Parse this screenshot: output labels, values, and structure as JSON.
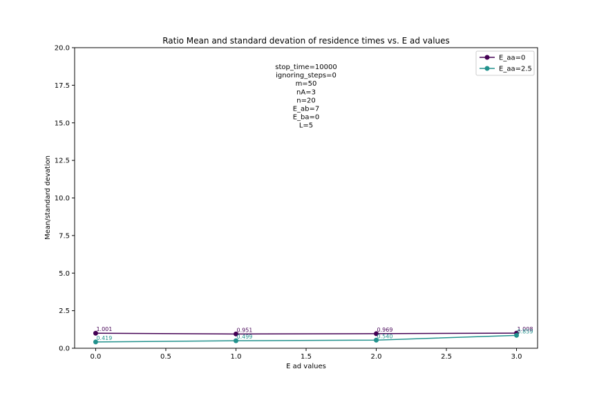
{
  "chart_data": {
    "type": "line",
    "title": "Ratio Mean and standard devation of residence times vs. E ad values",
    "xlabel": "E ad values",
    "ylabel": "Mean/standard devation",
    "xlim": [
      -0.15,
      3.15
    ],
    "ylim": [
      0.0,
      20.0
    ],
    "xticks": [
      0.0,
      0.5,
      1.0,
      1.5,
      2.0,
      2.5,
      3.0
    ],
    "xtick_labels": [
      "0.0",
      "0.5",
      "1.0",
      "1.5",
      "2.0",
      "2.5",
      "3.0"
    ],
    "yticks": [
      0.0,
      2.5,
      5.0,
      7.5,
      10.0,
      12.5,
      15.0,
      17.5,
      20.0
    ],
    "ytick_labels": [
      "0.0",
      "2.5",
      "5.0",
      "7.5",
      "10.0",
      "12.5",
      "15.0",
      "17.5",
      "20.0"
    ],
    "grid": false,
    "legend_position": "top-right",
    "annotation_lines": [
      "stop_time=10000",
      "ignoring_steps=0",
      "m=50",
      "nA=3",
      "n=20",
      "E_ab=7",
      "E_ba=0",
      "L=5"
    ],
    "series": [
      {
        "name": "E_aa=0",
        "color": "#440154",
        "x": [
          0.0,
          1.0,
          2.0,
          3.0
        ],
        "y": [
          1.001,
          0.951,
          0.969,
          1.008
        ],
        "labels": [
          "1.001",
          "0.951",
          "0.969",
          "1.008"
        ]
      },
      {
        "name": "E_aa=2.5",
        "color": "#21918c",
        "x": [
          0.0,
          1.0,
          2.0,
          3.0
        ],
        "y": [
          0.419,
          0.499,
          0.54,
          0.859
        ],
        "labels": [
          "0.419",
          "0.499",
          "0.540",
          "0.859"
        ]
      }
    ]
  }
}
